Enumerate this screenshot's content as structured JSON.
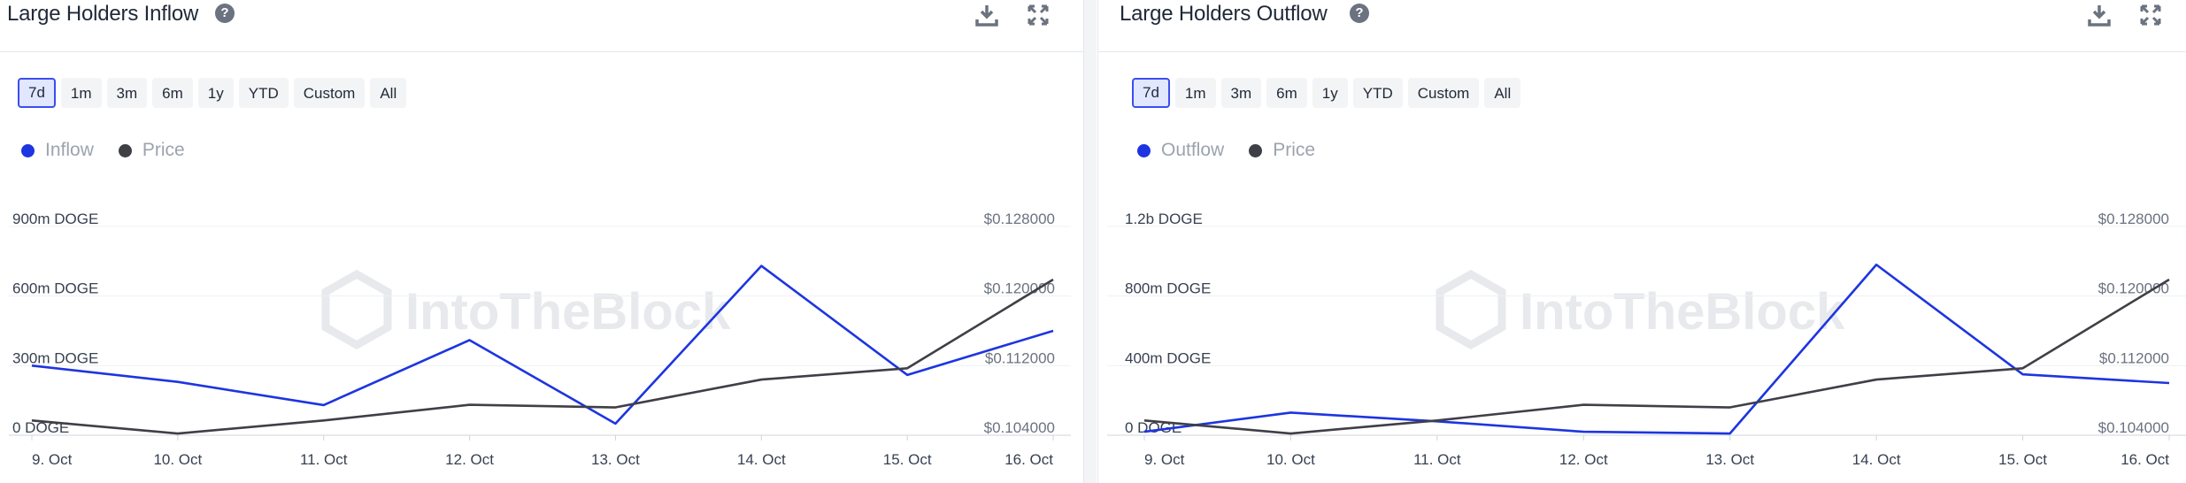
{
  "panels": [
    {
      "title": "Large Holders Inflow",
      "ranges": [
        "7d",
        "1m",
        "3m",
        "6m",
        "1y",
        "YTD",
        "Custom",
        "All"
      ],
      "active_range": "7d",
      "legend": [
        {
          "label": "Inflow",
          "color": "#1d35e0"
        },
        {
          "label": "Price",
          "color": "#3f3f46"
        }
      ],
      "watermark": "IntoTheBlock"
    },
    {
      "title": "Large Holders Outflow",
      "ranges": [
        "7d",
        "1m",
        "3m",
        "6m",
        "1y",
        "YTD",
        "Custom",
        "All"
      ],
      "active_range": "7d",
      "legend": [
        {
          "label": "Outflow",
          "color": "#1d35e0"
        },
        {
          "label": "Price",
          "color": "#3f3f46"
        }
      ],
      "watermark": "IntoTheBlock"
    }
  ],
  "icons": {
    "help": "help-icon",
    "download": "download-icon",
    "expand": "expand-icon"
  },
  "chart_data": [
    {
      "type": "line",
      "title": "Large Holders Inflow",
      "x": [
        "9. Oct",
        "10. Oct",
        "11. Oct",
        "12. Oct",
        "13. Oct",
        "14. Oct",
        "15. Oct",
        "16. Oct"
      ],
      "series": [
        {
          "name": "Inflow",
          "axis": "left",
          "color": "#1d35e0",
          "values": [
            300,
            230,
            130,
            410,
            50,
            730,
            260,
            450
          ]
        },
        {
          "name": "Price",
          "axis": "right",
          "color": "#3f3f46",
          "values": [
            0.1057,
            0.1042,
            0.1057,
            0.1075,
            0.1072,
            0.1104,
            0.1117,
            0.1219
          ]
        }
      ],
      "y_left": {
        "ticks": [
          "0 DOGE",
          "300m DOGE",
          "600m DOGE",
          "900m DOGE"
        ],
        "unit": "m DOGE",
        "range": [
          0,
          900
        ]
      },
      "y_right": {
        "ticks": [
          "$0.104000",
          "$0.112000",
          "$0.120000",
          "$0.128000"
        ],
        "range": [
          0.104,
          0.128
        ]
      },
      "grid": true,
      "legend_position": "top-left"
    },
    {
      "type": "line",
      "title": "Large Holders Outflow",
      "x": [
        "9. Oct",
        "10. Oct",
        "11. Oct",
        "12. Oct",
        "13. Oct",
        "14. Oct",
        "15. Oct",
        "16. Oct"
      ],
      "series": [
        {
          "name": "Outflow",
          "axis": "left",
          "color": "#1d35e0",
          "values": [
            20,
            130,
            80,
            20,
            10,
            980,
            350,
            300
          ]
        },
        {
          "name": "Price",
          "axis": "right",
          "color": "#3f3f46",
          "values": [
            0.1057,
            0.1042,
            0.1057,
            0.1075,
            0.1072,
            0.1104,
            0.1117,
            0.1219
          ]
        }
      ],
      "y_left": {
        "ticks": [
          "0 DOGE",
          "400m DOGE",
          "800m DOGE",
          "1.2b DOGE"
        ],
        "unit": "m DOGE",
        "range": [
          0,
          1200
        ]
      },
      "y_right": {
        "ticks": [
          "$0.104000",
          "$0.112000",
          "$0.120000",
          "$0.128000"
        ],
        "range": [
          0.104,
          0.128
        ]
      },
      "grid": true,
      "legend_position": "top-left"
    }
  ]
}
